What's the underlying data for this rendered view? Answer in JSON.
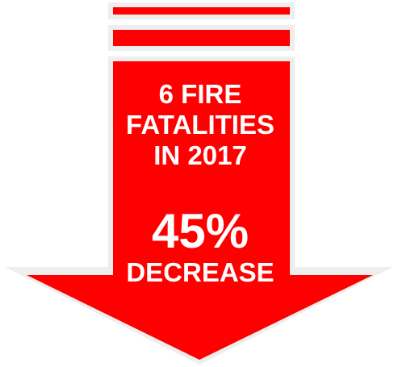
{
  "headline": {
    "line1": "6 FIRE",
    "line2": "FATALITIES",
    "line3": "IN 2017"
  },
  "stat": {
    "percent": "45%",
    "label": "DECREASE"
  },
  "colors": {
    "arrow_fill": "#ff0000",
    "arrow_outline": "#e8e8e8",
    "text": "#ffffff"
  }
}
